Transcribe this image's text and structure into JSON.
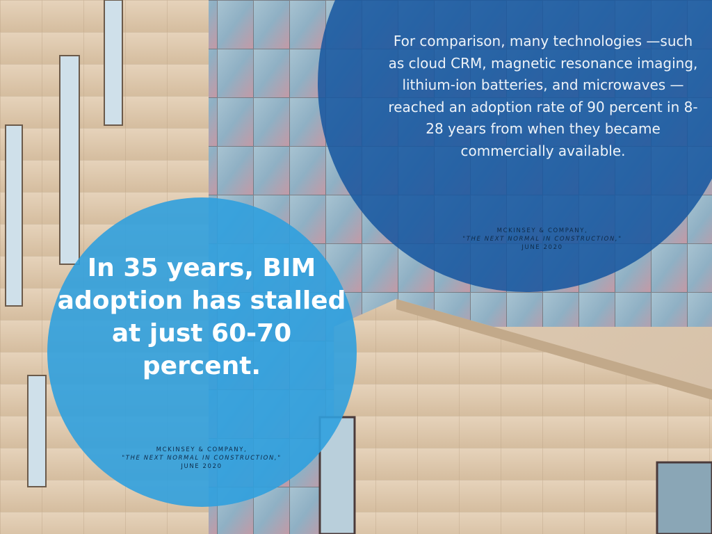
{
  "colors": {
    "circle_dark": "#1656a0",
    "circle_light": "#30a0de",
    "facade": "#dcc7ad",
    "glass": "#8fb0c4",
    "citation_text": "#0e2a48"
  },
  "background": {
    "icon": "building-facade-photo"
  },
  "top_quote": {
    "text": "For comparison, many technologies —such as cloud CRM, magnetic resonance imaging, lithium-ion batteries, and microwaves — reached an adoption rate of 90 percent in 8-28 years from when they became commercially available.",
    "citation": {
      "source": "McKinsey & Company,",
      "title": "\"The Next Normal in Construction,\"",
      "date": "June 2020"
    }
  },
  "bottom_quote": {
    "text": "In 35 years, BIM adoption has stalled at just 60-70 percent.",
    "citation": {
      "source": "McKinsey & Company,",
      "title": "\"The Next Normal in Construction,\"",
      "date": "June 2020"
    }
  }
}
